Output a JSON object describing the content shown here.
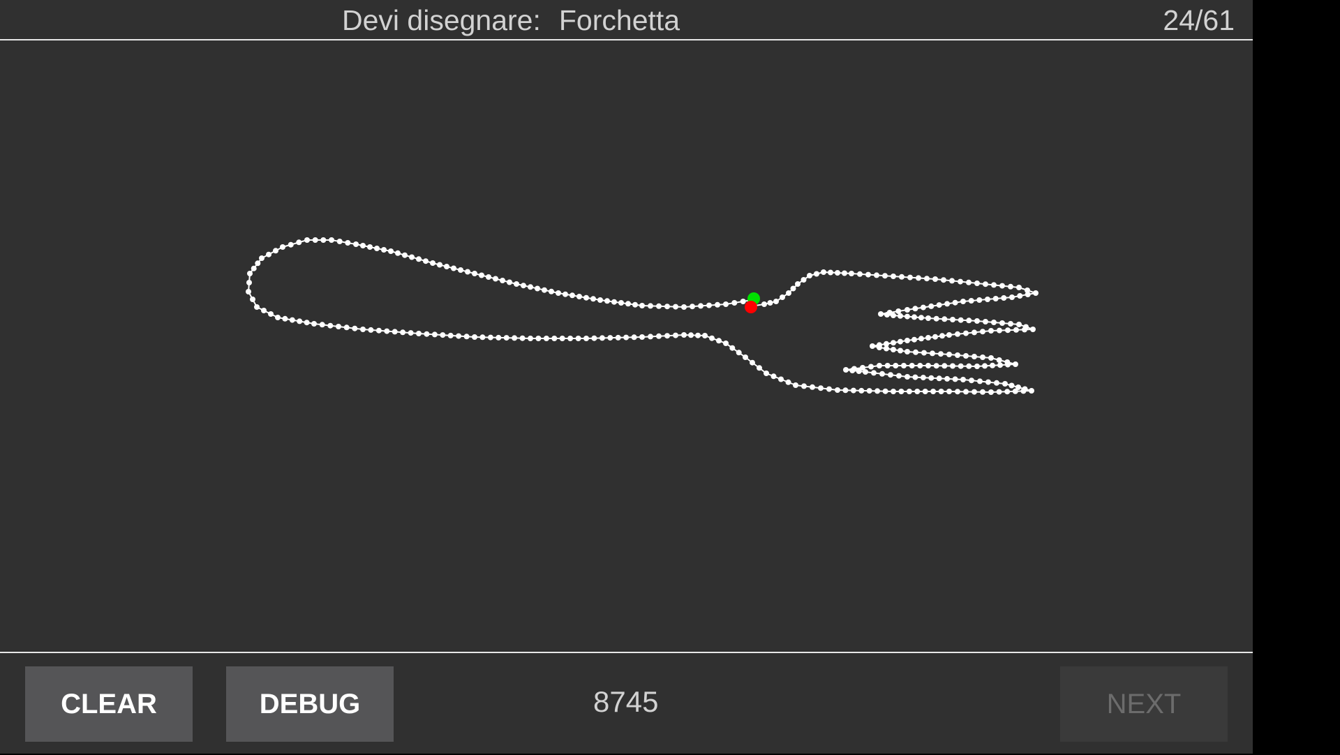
{
  "header": {
    "prompt_label": "Devi disegnare:",
    "word": "Forchetta",
    "progress": "24/61"
  },
  "drawing": {
    "stroke_color": "#ffffff",
    "start_marker_color": "#00e000",
    "end_marker_color": "#ff0000"
  },
  "footer": {
    "clear_label": "CLEAR",
    "debug_label": "DEBUG",
    "score": "8745",
    "next_label": "NEXT",
    "next_enabled": false
  },
  "colors": {
    "background": "#303030",
    "button": "#555557",
    "button_disabled": "#3a3a3a",
    "text": "#d2d2d2",
    "divider": "#e8e8e8"
  }
}
